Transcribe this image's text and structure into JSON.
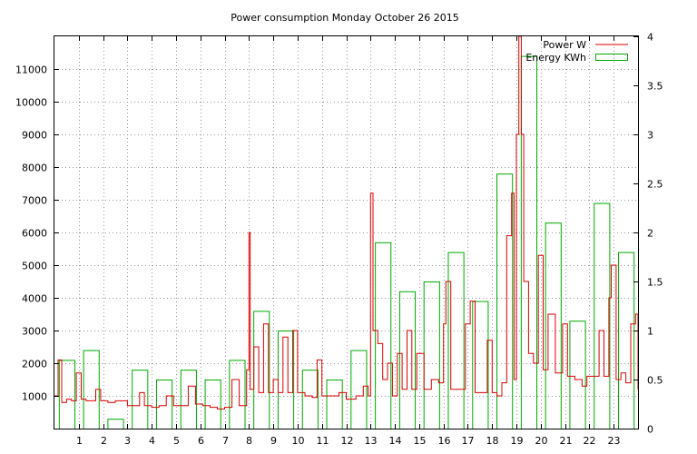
{
  "chart_data": {
    "type": "bar",
    "title": "Power consumption Monday October 26 2015",
    "xlim": [
      0,
      24
    ],
    "x_ticks": [
      1,
      2,
      3,
      4,
      5,
      6,
      7,
      8,
      9,
      10,
      11,
      12,
      13,
      14,
      15,
      16,
      17,
      18,
      19,
      20,
      21,
      22,
      23
    ],
    "y_axis_left": {
      "ylim": [
        0,
        12000
      ],
      "ticks": [
        1000,
        2000,
        3000,
        4000,
        5000,
        6000,
        7000,
        8000,
        9000,
        10000,
        11000
      ]
    },
    "y_axis_right": {
      "ylim": [
        0,
        4
      ],
      "ticks": [
        0,
        0.5,
        1,
        1.5,
        2,
        2.5,
        3,
        3.5,
        4
      ]
    },
    "grid": true,
    "legend_position": "top-right",
    "colors": {
      "power": "#dd0000",
      "energy": "#00aa00"
    },
    "series": [
      {
        "name": "Power W",
        "type": "line",
        "axis": "left",
        "points": [
          [
            0,
            1000
          ],
          [
            0.15,
            2100
          ],
          [
            0.3,
            800
          ],
          [
            0.5,
            900
          ],
          [
            0.7,
            850
          ],
          [
            0.9,
            1700
          ],
          [
            1.1,
            900
          ],
          [
            1.3,
            850
          ],
          [
            1.5,
            850
          ],
          [
            1.7,
            1200
          ],
          [
            1.9,
            850
          ],
          [
            2.2,
            800
          ],
          [
            2.5,
            850
          ],
          [
            2.7,
            850
          ],
          [
            3.0,
            700
          ],
          [
            3.3,
            700
          ],
          [
            3.5,
            1100
          ],
          [
            3.7,
            700
          ],
          [
            4.0,
            650
          ],
          [
            4.3,
            700
          ],
          [
            4.6,
            1000
          ],
          [
            4.9,
            700
          ],
          [
            5.2,
            700
          ],
          [
            5.5,
            1300
          ],
          [
            5.8,
            750
          ],
          [
            6.1,
            700
          ],
          [
            6.4,
            650
          ],
          [
            6.7,
            600
          ],
          [
            7.0,
            650
          ],
          [
            7.3,
            1500
          ],
          [
            7.6,
            700
          ],
          [
            7.9,
            1800
          ],
          [
            8.0,
            6000
          ],
          [
            8.05,
            1200
          ],
          [
            8.2,
            2500
          ],
          [
            8.4,
            1100
          ],
          [
            8.6,
            3200
          ],
          [
            8.8,
            1100
          ],
          [
            9.0,
            1500
          ],
          [
            9.2,
            1100
          ],
          [
            9.4,
            2800
          ],
          [
            9.6,
            1100
          ],
          [
            9.8,
            3000
          ],
          [
            10.0,
            1100
          ],
          [
            10.3,
            1000
          ],
          [
            10.6,
            950
          ],
          [
            10.8,
            2100
          ],
          [
            11.0,
            1000
          ],
          [
            11.4,
            1000
          ],
          [
            11.7,
            1100
          ],
          [
            12.0,
            900
          ],
          [
            12.4,
            1000
          ],
          [
            12.7,
            1300
          ],
          [
            12.9,
            1000
          ],
          [
            13.0,
            7200
          ],
          [
            13.1,
            3000
          ],
          [
            13.3,
            2600
          ],
          [
            13.5,
            1500
          ],
          [
            13.7,
            2000
          ],
          [
            13.9,
            1000
          ],
          [
            14.1,
            2300
          ],
          [
            14.3,
            1200
          ],
          [
            14.5,
            3000
          ],
          [
            14.7,
            1200
          ],
          [
            14.9,
            2300
          ],
          [
            15.2,
            1200
          ],
          [
            15.5,
            1500
          ],
          [
            15.8,
            1400
          ],
          [
            16.0,
            3200
          ],
          [
            16.1,
            4500
          ],
          [
            16.3,
            1200
          ],
          [
            16.6,
            1200
          ],
          [
            16.9,
            3200
          ],
          [
            17.1,
            3900
          ],
          [
            17.3,
            1100
          ],
          [
            17.6,
            1100
          ],
          [
            17.8,
            2700
          ],
          [
            18.0,
            1100
          ],
          [
            18.2,
            1000
          ],
          [
            18.4,
            1400
          ],
          [
            18.6,
            5900
          ],
          [
            18.8,
            7200
          ],
          [
            18.9,
            1500
          ],
          [
            19.0,
            9000
          ],
          [
            19.1,
            12000
          ],
          [
            19.2,
            9000
          ],
          [
            19.3,
            4500
          ],
          [
            19.5,
            2300
          ],
          [
            19.7,
            2000
          ],
          [
            19.9,
            5300
          ],
          [
            20.1,
            1800
          ],
          [
            20.3,
            3500
          ],
          [
            20.6,
            1700
          ],
          [
            20.9,
            3200
          ],
          [
            21.1,
            1600
          ],
          [
            21.4,
            1500
          ],
          [
            21.7,
            1300
          ],
          [
            21.9,
            1600
          ],
          [
            22.1,
            1600
          ],
          [
            22.4,
            3000
          ],
          [
            22.6,
            1600
          ],
          [
            22.8,
            4000
          ],
          [
            22.9,
            5000
          ],
          [
            23.1,
            1500
          ],
          [
            23.3,
            1700
          ],
          [
            23.5,
            1400
          ],
          [
            23.7,
            3200
          ],
          [
            23.9,
            3500
          ],
          [
            24.0,
            1200
          ]
        ]
      },
      {
        "name": "Energy KWh",
        "type": "bar",
        "axis": "right",
        "hours": [
          0,
          1,
          2,
          3,
          4,
          5,
          6,
          7,
          8,
          9,
          10,
          11,
          12,
          13,
          14,
          15,
          16,
          17,
          18,
          19,
          20,
          21,
          22,
          23
        ],
        "values": [
          0.7,
          0.8,
          0.1,
          0.6,
          0.5,
          0.6,
          0.5,
          0.7,
          1.2,
          1.0,
          0.6,
          0.5,
          0.8,
          1.9,
          1.4,
          1.5,
          1.8,
          1.3,
          2.6,
          3.8,
          2.1,
          1.1,
          2.3,
          1.8
        ]
      }
    ]
  }
}
